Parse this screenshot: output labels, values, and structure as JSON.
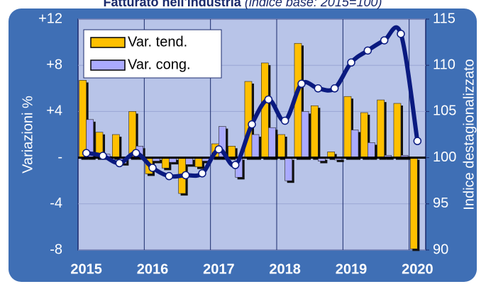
{
  "chart_data": {
    "type": "bar",
    "title": "Fatturato nell'industria",
    "subtitle": "(indice base: 2015=100)",
    "categories": [
      "2015",
      null,
      null,
      null,
      "2016",
      null,
      null,
      null,
      "2017",
      null,
      null,
      null,
      "2018",
      null,
      null,
      null,
      "2019",
      null,
      null,
      null,
      "2020"
    ],
    "series": [
      {
        "name": "Var. tend.",
        "color": "#ffc000",
        "values": [
          6.7,
          2.2,
          2.0,
          4.0,
          -1.4,
          -0.9,
          -3.1,
          -0.8,
          1.2,
          1.0,
          6.6,
          8.2,
          2.0,
          9.9,
          4.5,
          0.5,
          5.3,
          3.9,
          5.0,
          4.7,
          -7.9
        ]
      },
      {
        "name": "Var. cong.",
        "color": "#aaaaff",
        "values": [
          3.3,
          0.3,
          -0.5,
          1.0,
          -0.3,
          -0.4,
          -0.6,
          -0.3,
          2.7,
          -1.7,
          2.0,
          2.6,
          -2.0,
          4.0,
          -0.3,
          -0.2,
          2.4,
          1.3,
          0.2,
          0.2,
          null
        ]
      },
      {
        "name": "Indice destagionalizzato",
        "type": "line",
        "axis": "y2",
        "color": "#0a1a80",
        "values": [
          100.5,
          100.2,
          99.4,
          100.5,
          98.9,
          98.0,
          98.1,
          98.3,
          100.9,
          99.2,
          103.6,
          106.3,
          104.0,
          108.0,
          107.5,
          107.5,
          110.3,
          111.6,
          112.7,
          113.4,
          101.8
        ]
      }
    ],
    "ylabel": "Variazioni %",
    "y2label": "Indice destagionalizzato",
    "ylim": [
      -8,
      12
    ],
    "yticks": [
      -8,
      -4,
      {
        "value": 0,
        "label": "-"
      },
      {
        "value": 4,
        "label": "+4"
      },
      {
        "value": 8,
        "label": "+8"
      },
      {
        "value": 12,
        "label": "+12"
      }
    ],
    "y2lim": [
      90,
      115
    ],
    "y2ticks": [
      90,
      95,
      100,
      105,
      110,
      115
    ],
    "grid": true,
    "legend": "upper left"
  }
}
